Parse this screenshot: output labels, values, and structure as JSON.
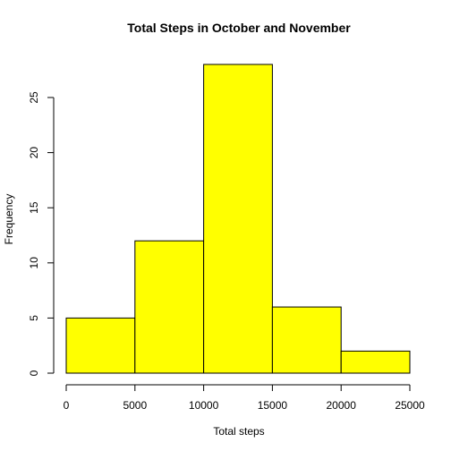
{
  "chart_data": {
    "type": "bar",
    "title": "Total Steps in October and November",
    "xlabel": "Total steps",
    "ylabel": "Frequency",
    "bins": [
      {
        "from": 0,
        "to": 5000,
        "count": 5
      },
      {
        "from": 5000,
        "to": 10000,
        "count": 12
      },
      {
        "from": 10000,
        "to": 15000,
        "count": 28
      },
      {
        "from": 15000,
        "to": 20000,
        "count": 6
      },
      {
        "from": 20000,
        "to": 25000,
        "count": 2
      }
    ],
    "xlim": [
      0,
      25000
    ],
    "ylim": [
      0,
      28
    ],
    "x_ticks": [
      0,
      5000,
      10000,
      15000,
      20000,
      25000
    ],
    "y_ticks": [
      0,
      5,
      10,
      15,
      20,
      25
    ],
    "bar_color": "#ffff00",
    "grid": false
  }
}
